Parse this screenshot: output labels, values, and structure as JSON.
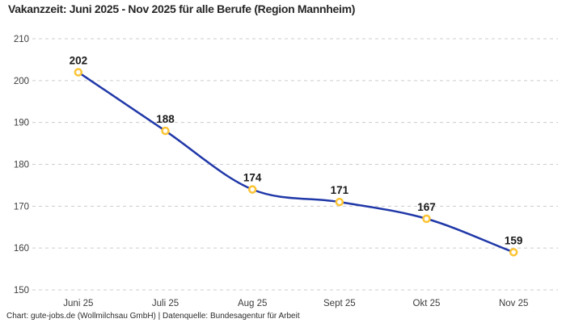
{
  "footer": {
    "attribution": "Chart: gute-jobs.de (Wollmilchsau GmbH) | Datenquelle: Bundesagentur für Arbeit"
  },
  "colors": {
    "background": "#ffffff",
    "line": "#2038a8",
    "marker_ring": "#fcc434",
    "marker_fill": "#ffffff",
    "grid": "#cccccc",
    "title_text": "#262626",
    "value_label_text": "#1a1a1a",
    "axis_text": "#3c3c3c",
    "footer_text": "#2b2b2b"
  },
  "chart_data": {
    "type": "line",
    "title": "Vakanzzeit: Juni 2025 - Nov 2025 für alle Berufe (Region Mannheim)",
    "categories": [
      "Juni 25",
      "Juli 25",
      "Aug 25",
      "Sept 25",
      "Okt 25",
      "Nov 25"
    ],
    "values": [
      202,
      188,
      174,
      171,
      167,
      159
    ],
    "xlabel": "",
    "ylabel": "",
    "ylim": [
      150,
      210
    ],
    "yticks": [
      150,
      160,
      170,
      180,
      190,
      200,
      210
    ],
    "grid": "horizontal-dashed",
    "legend": "none",
    "curve": "smooth-monotone",
    "point_labels_visible": true
  }
}
